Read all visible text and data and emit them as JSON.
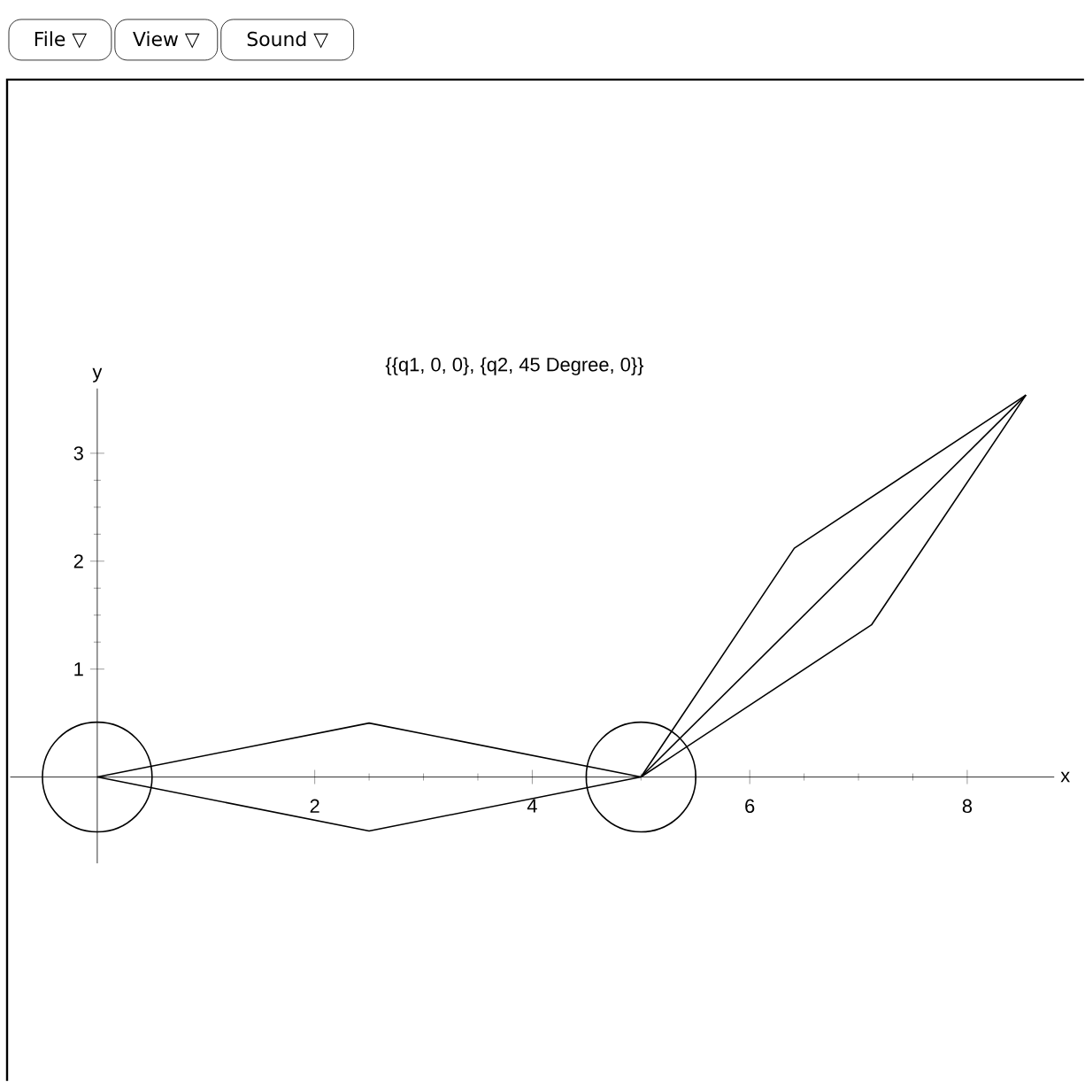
{
  "chart_data": {
    "type": "line",
    "title": "{{q1, 0, 0}, {q2, 45 Degree, 0}}",
    "xlabel": "x",
    "ylabel": "y",
    "annotations": [
      "File ▽",
      "View ▽",
      "Sound ▽"
    ],
    "xlim": [
      -0.8,
      8.8
    ],
    "ylim": [
      -0.8,
      3.6
    ],
    "xticks": [
      2,
      4,
      6,
      8
    ],
    "yticks": [
      1,
      2,
      3
    ],
    "line_style": "solid",
    "marker": "none",
    "series": [
      {
        "color": "#000000",
        "x": [
          0,
          2.5,
          5
        ],
        "values": [
          0,
          0.5,
          0
        ]
      },
      {
        "color": "#000000",
        "x": [
          0,
          2.5,
          5
        ],
        "values": [
          0,
          -0.5,
          0
        ]
      },
      {
        "color": "#000000",
        "x": [
          5,
          6.41,
          8.54
        ],
        "values": [
          0,
          2.12,
          3.54
        ]
      },
      {
        "color": "#000000",
        "x": [
          5,
          7.12,
          8.54
        ],
        "values": [
          0,
          1.41,
          3.54
        ]
      },
      {
        "color": "#000000",
        "x": [
          5,
          8.54
        ],
        "values": [
          0,
          3.54
        ]
      },
      {
        "type": "scatter",
        "marker": "circle",
        "color": "#000000",
        "x": [
          0,
          5
        ],
        "values": [
          0,
          0
        ]
      }
    ]
  }
}
